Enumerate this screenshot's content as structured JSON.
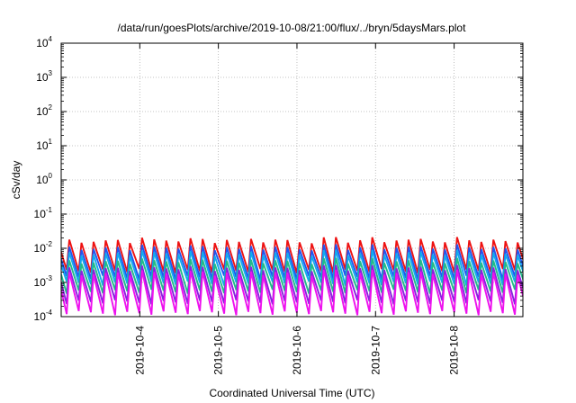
{
  "chart_data": {
    "type": "line",
    "title": "/data/run/goesPlots/archive/2019-10-08/21:00/flux/../bryn/5daysMars.plot",
    "xlabel": "Coordinated Universal Time (UTC)",
    "ylabel": "cSv/day",
    "y_scale": "log",
    "ylim": [
      0.0001,
      10000
    ],
    "y_ticks": [
      {
        "base": "10",
        "exp": "-4"
      },
      {
        "base": "10",
        "exp": "-3"
      },
      {
        "base": "10",
        "exp": "-2"
      },
      {
        "base": "10",
        "exp": "-1"
      },
      {
        "base": "10",
        "exp": "0"
      },
      {
        "base": "10",
        "exp": "1"
      },
      {
        "base": "10",
        "exp": "2"
      },
      {
        "base": "10",
        "exp": "3"
      },
      {
        "base": "10",
        "exp": "4"
      }
    ],
    "xlim": [
      "2019-10-03T00:00",
      "2019-10-08T21:00"
    ],
    "x_ticks": [
      "2019-10-4",
      "2019-10-5",
      "2019-10-6",
      "2019-10-7",
      "2019-10-8"
    ],
    "x_tick_dates": [
      "2019-10-04",
      "2019-10-05",
      "2019-10-06",
      "2019-10-07",
      "2019-10-08"
    ],
    "grid": true,
    "legend": "none",
    "sawtooth_period_hours": 3.7,
    "series": [
      {
        "color": "#ee1111",
        "peak": 0.017,
        "trough": 0.0022
      },
      {
        "color": "#2255ee",
        "peak": 0.0105,
        "trough": 0.0014
      },
      {
        "color": "#11aaee",
        "peak": 0.0072,
        "trough": 0.00095
      },
      {
        "color": "#22bb88",
        "peak": 0.0042,
        "trough": 0.00055
      },
      {
        "color": "#8822dd",
        "peak": 0.0026,
        "trough": 0.00027
      },
      {
        "color": "#ee11ee",
        "peak": 0.0019,
        "trough": 0.00013
      }
    ]
  }
}
